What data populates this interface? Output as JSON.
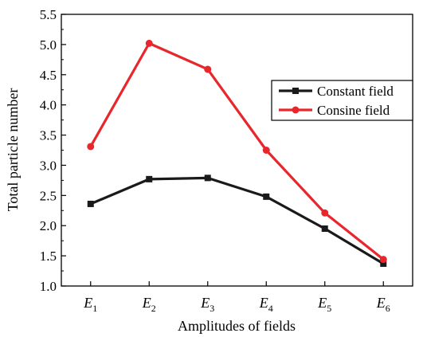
{
  "chart_data": {
    "type": "line",
    "title": "",
    "xlabel": "Amplitudes of fields",
    "ylabel": "Total particle number",
    "categories": [
      {
        "main": "E",
        "sub": "1"
      },
      {
        "main": "E",
        "sub": "2"
      },
      {
        "main": "E",
        "sub": "3"
      },
      {
        "main": "E",
        "sub": "4"
      },
      {
        "main": "E",
        "sub": "5"
      },
      {
        "main": "E",
        "sub": "6"
      }
    ],
    "ylim": [
      1.0,
      5.5
    ],
    "yticks": [
      "1.0",
      "1.5",
      "2.0",
      "2.5",
      "3.0",
      "3.5",
      "4.0",
      "4.5",
      "5.0",
      "5.5"
    ],
    "legend_position": "right",
    "grid": false,
    "series": [
      {
        "name": "Constant field",
        "color": "#1a1a1a",
        "marker": "square",
        "values": [
          2.36,
          2.77,
          2.79,
          2.48,
          1.95,
          1.37
        ]
      },
      {
        "name": "Consine field",
        "color": "#e8262b",
        "marker": "circle",
        "values": [
          3.31,
          5.02,
          4.59,
          3.25,
          2.21,
          1.44
        ]
      }
    ]
  }
}
